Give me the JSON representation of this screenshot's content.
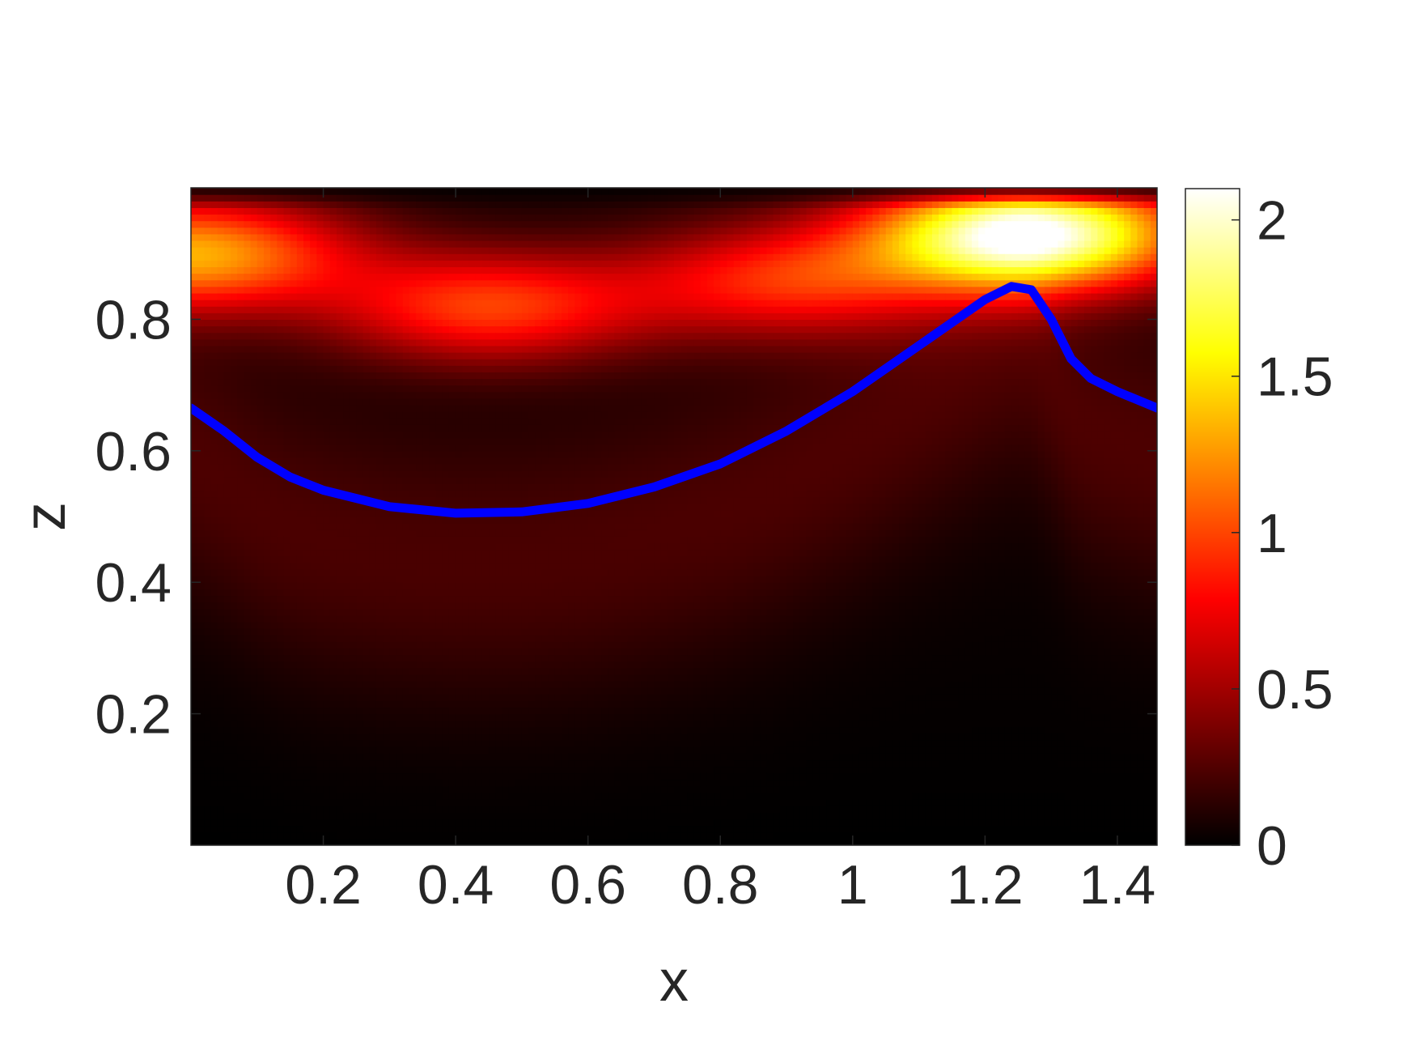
{
  "chart_data": {
    "type": "heatmap",
    "title": "",
    "xlabel": "x",
    "ylabel": "z",
    "xlim": [
      0,
      1.46
    ],
    "ylim": [
      0,
      1.0
    ],
    "x_ticks": [
      0.2,
      0.4,
      0.6,
      0.8,
      1.0,
      1.2,
      1.4
    ],
    "x_tick_labels": [
      "0.2",
      "0.4",
      "0.6",
      "0.8",
      "1",
      "1.2",
      "1.4"
    ],
    "y_ticks": [
      0.2,
      0.4,
      0.6,
      0.8
    ],
    "y_tick_labels": [
      "0.2",
      "0.4",
      "0.6",
      "0.8"
    ],
    "colormap": "hot",
    "colorbar": {
      "range": [
        0,
        2.1
      ],
      "ticks": [
        0,
        0.5,
        1,
        1.5,
        2
      ],
      "tick_labels": [
        "0",
        "0.5",
        "1",
        "1.5",
        "2"
      ]
    },
    "field_peaks": [
      {
        "x": 0.0,
        "z": 0.9,
        "value": 1.25
      },
      {
        "x": 0.45,
        "z": 0.82,
        "value": 0.9
      },
      {
        "x": 0.9,
        "z": 0.86,
        "value": 0.8
      },
      {
        "x": 1.27,
        "z": 0.93,
        "value": 2.05
      }
    ],
    "series": [
      {
        "color": "#0000ff",
        "x": [
          0.0,
          0.05,
          0.1,
          0.15,
          0.2,
          0.3,
          0.4,
          0.5,
          0.6,
          0.7,
          0.8,
          0.9,
          1.0,
          1.1,
          1.2,
          1.24,
          1.27,
          1.3,
          1.33,
          1.36,
          1.4,
          1.46
        ],
        "y": [
          0.665,
          0.63,
          0.59,
          0.56,
          0.54,
          0.515,
          0.505,
          0.507,
          0.52,
          0.545,
          0.58,
          0.63,
          0.69,
          0.76,
          0.83,
          0.85,
          0.845,
          0.8,
          0.74,
          0.71,
          0.69,
          0.665
        ]
      }
    ]
  }
}
